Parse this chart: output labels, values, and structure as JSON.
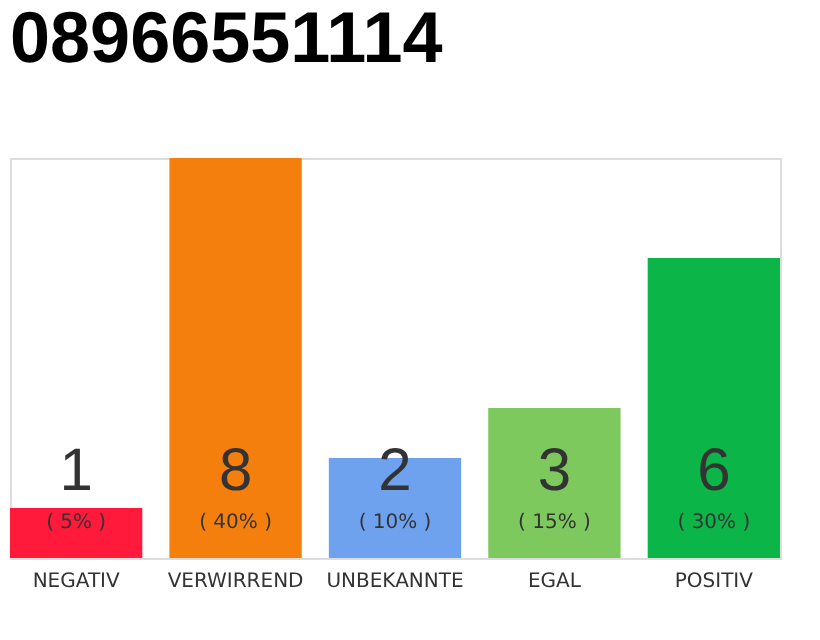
{
  "chart_data": {
    "type": "bar",
    "title": "08966551114",
    "categories": [
      "NEGATIV",
      "VERWIRREND",
      "UNBEKANNTE",
      "EGAL",
      "POSITIV"
    ],
    "values": [
      1,
      8,
      2,
      3,
      6
    ],
    "colors": [
      "#ff1a3c",
      "#f57f0c",
      "#6ea2ef",
      "#7dc95e",
      "#0bb548"
    ],
    "data_labels": true,
    "annotations": [
      "( 5% )",
      "( 40% )",
      "( 10% )",
      "( 15% )",
      "( 30% )"
    ],
    "grid": false
  }
}
